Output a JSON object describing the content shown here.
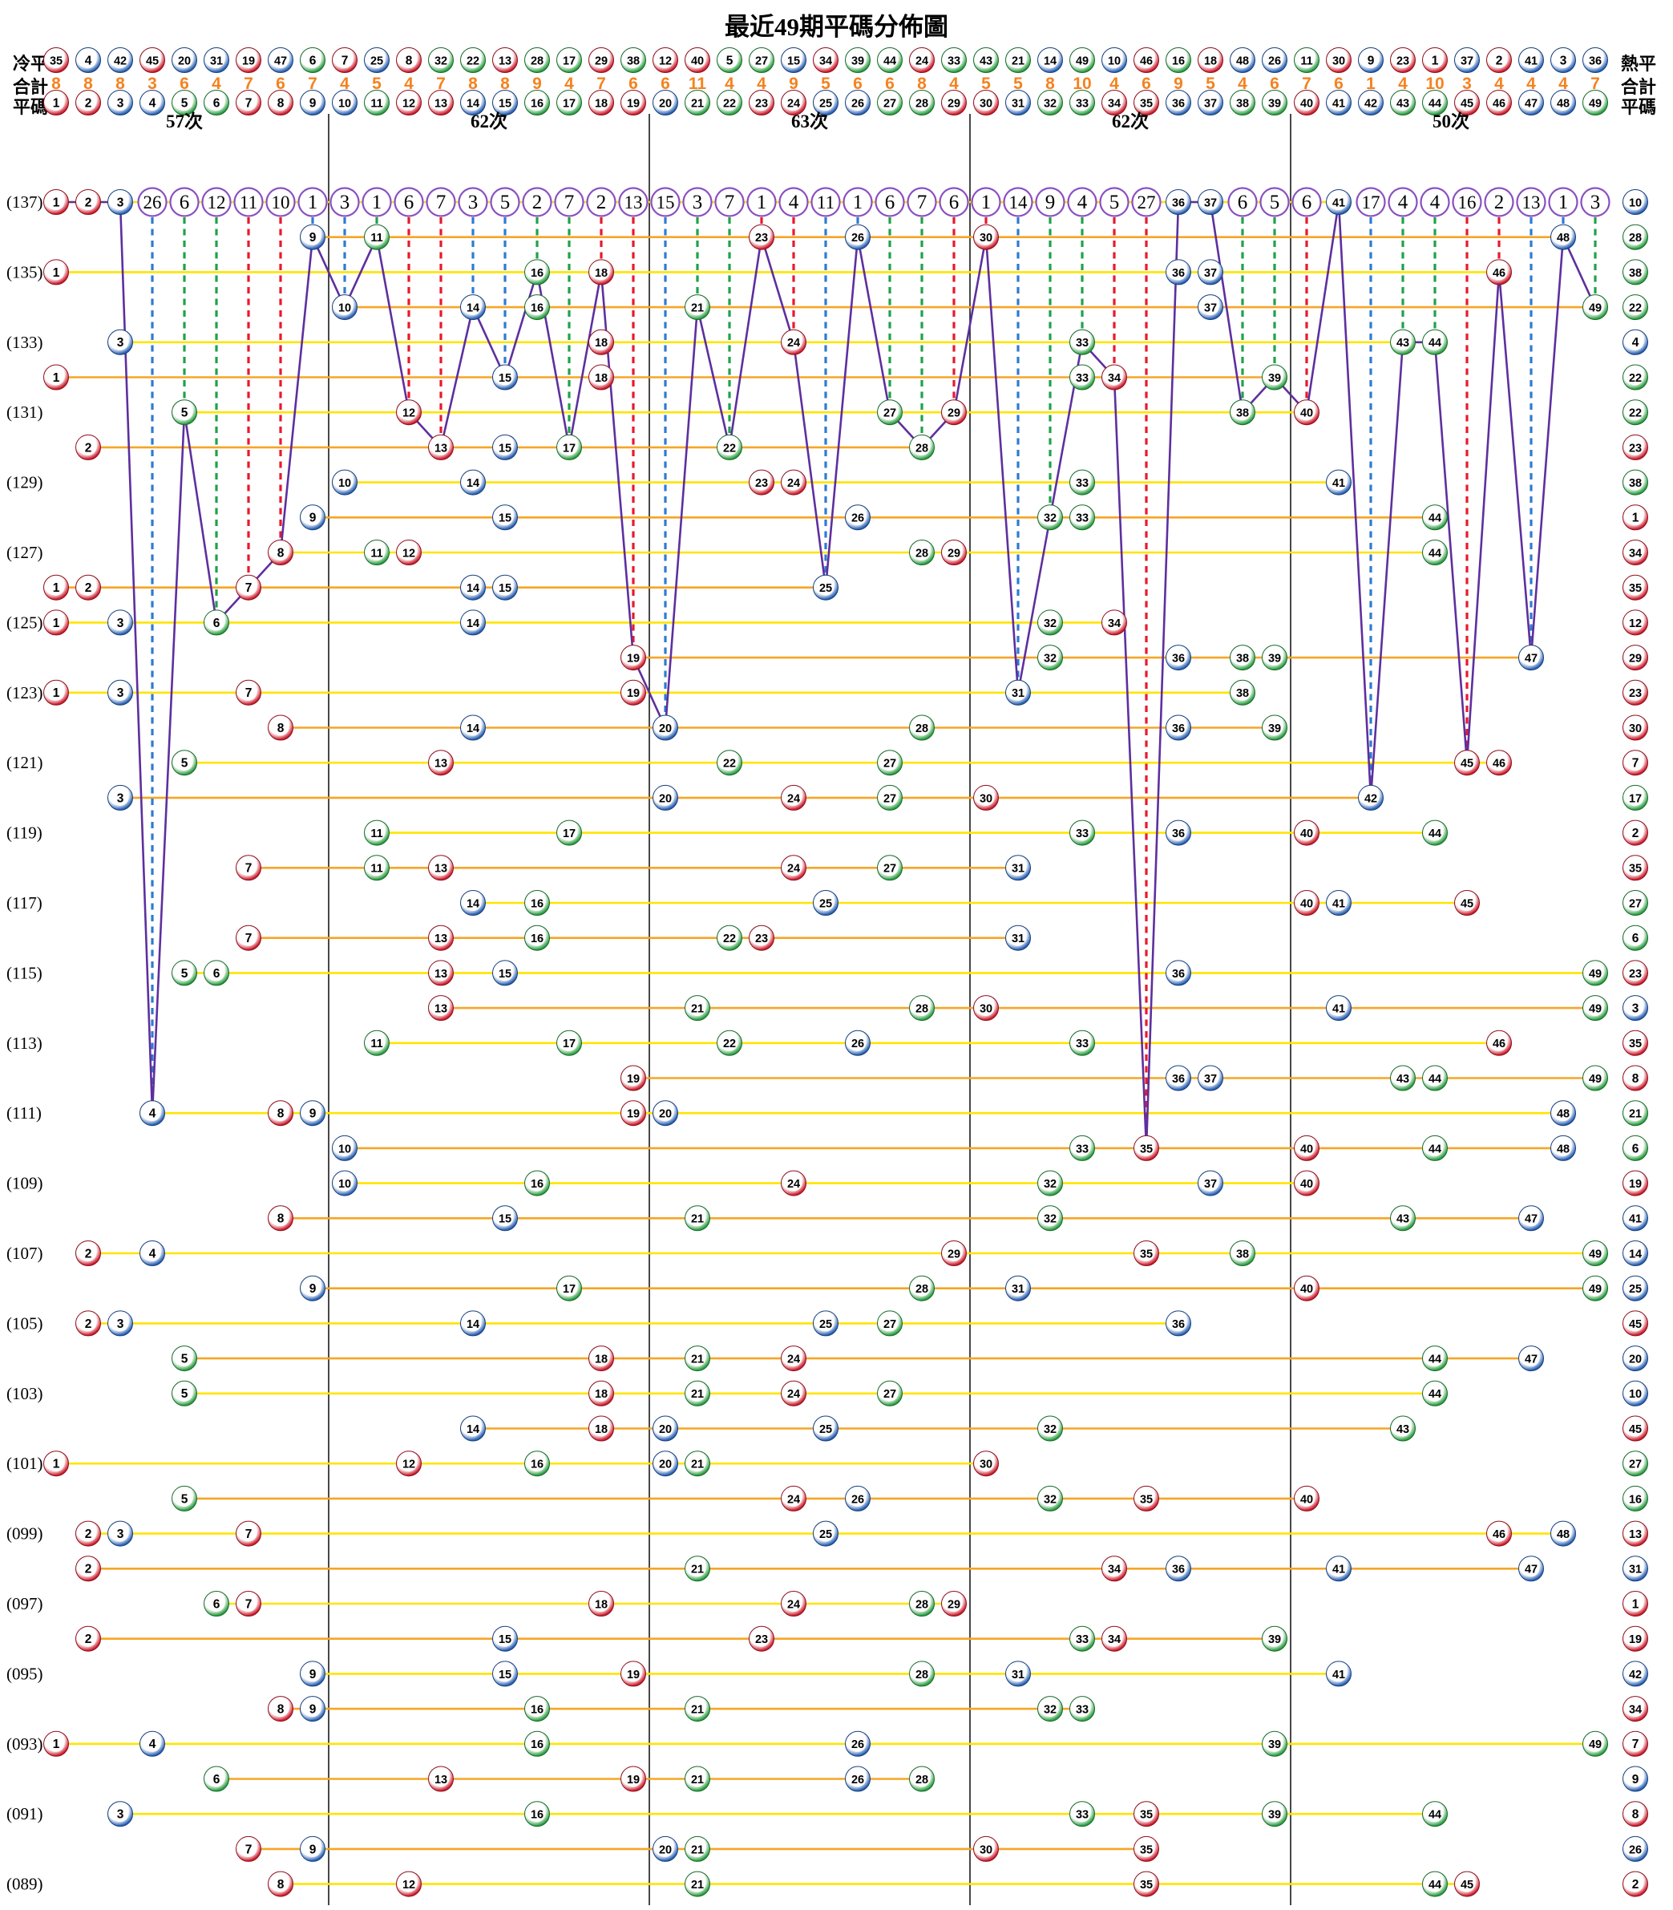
{
  "title": "最近49期平碼分佈圖",
  "header": {
    "left_labels": {
      "row1": "冷平",
      "row2": "合計",
      "row3": "平碼"
    },
    "right_labels": {
      "row1": "熱平",
      "row2": "合計",
      "row3": "平碼"
    },
    "cold_sequence": [
      35,
      4,
      42,
      45,
      20,
      31,
      19,
      47,
      6,
      7,
      25,
      8,
      32,
      22,
      13,
      28,
      17,
      29,
      38,
      12,
      40,
      5,
      27,
      15,
      34,
      39,
      44,
      24,
      33,
      43,
      21,
      14,
      49,
      10,
      46,
      16,
      18,
      48,
      26,
      11,
      30,
      9,
      23,
      1,
      37,
      2,
      41,
      3,
      36
    ],
    "totals": [
      8,
      8,
      8,
      3,
      6,
      4,
      7,
      6,
      7,
      4,
      5,
      4,
      7,
      8,
      8,
      9,
      4,
      7,
      6,
      6,
      11,
      4,
      4,
      9,
      5,
      6,
      6,
      8,
      4,
      5,
      5,
      8,
      10,
      4,
      6,
      9,
      5,
      4,
      6,
      7,
      6,
      1,
      4,
      10,
      3,
      4,
      4,
      4,
      7
    ],
    "numbers": [
      1,
      2,
      3,
      4,
      5,
      6,
      7,
      8,
      9,
      10,
      11,
      12,
      13,
      14,
      15,
      16,
      17,
      18,
      19,
      20,
      21,
      22,
      23,
      24,
      25,
      26,
      27,
      28,
      29,
      30,
      31,
      32,
      33,
      34,
      35,
      36,
      37,
      38,
      39,
      40,
      41,
      42,
      43,
      44,
      45,
      46,
      47,
      48,
      49
    ],
    "group_counts": [
      "57次",
      "62次",
      "63次",
      "62次",
      "50次"
    ]
  },
  "chart_data": {
    "type": "scatter",
    "title": "最近49期平碼分佈圖",
    "x_axis": "號碼 1-49 (平碼)",
    "y_axis": "期號 137 至 089",
    "latest_period": 137,
    "miss_counts": [
      0,
      0,
      0,
      26,
      6,
      12,
      11,
      10,
      1,
      3,
      1,
      6,
      7,
      3,
      5,
      2,
      7,
      2,
      13,
      15,
      3,
      7,
      1,
      4,
      11,
      1,
      6,
      7,
      6,
      1,
      14,
      9,
      4,
      5,
      27,
      0,
      0,
      6,
      5,
      6,
      0,
      17,
      4,
      4,
      16,
      2,
      13,
      1,
      3
    ],
    "periods": [
      {
        "period": 137,
        "balls": [
          1,
          2,
          3,
          36,
          37,
          41
        ],
        "hot": 10
      },
      {
        "period": 136,
        "balls": [
          9,
          11,
          23,
          26,
          30,
          48
        ],
        "hot": 28
      },
      {
        "period": 135,
        "balls": [
          1,
          16,
          18,
          36,
          37,
          46
        ],
        "hot": 38
      },
      {
        "period": 134,
        "balls": [
          10,
          14,
          16,
          21,
          37,
          49
        ],
        "hot": 22
      },
      {
        "period": 133,
        "balls": [
          3,
          18,
          24,
          33,
          43,
          44
        ],
        "hot": 4
      },
      {
        "period": 132,
        "balls": [
          1,
          15,
          18,
          33,
          34,
          39
        ],
        "hot": 22
      },
      {
        "period": 131,
        "balls": [
          5,
          12,
          27,
          29,
          38,
          40
        ],
        "hot": 22
      },
      {
        "period": 130,
        "balls": [
          2,
          13,
          15,
          17,
          22,
          28
        ],
        "hot": 23
      },
      {
        "period": 129,
        "balls": [
          10,
          14,
          23,
          24,
          33,
          41
        ],
        "hot": 38
      },
      {
        "period": 128,
        "balls": [
          9,
          15,
          26,
          32,
          33,
          44
        ],
        "hot": 1
      },
      {
        "period": 127,
        "balls": [
          8,
          11,
          12,
          28,
          29,
          44
        ],
        "hot": 34
      },
      {
        "period": 126,
        "balls": [
          1,
          2,
          7,
          14,
          15,
          25
        ],
        "hot": 35
      },
      {
        "period": 125,
        "balls": [
          1,
          3,
          6,
          14,
          32,
          34
        ],
        "hot": 12
      },
      {
        "period": 124,
        "balls": [
          19,
          32,
          36,
          38,
          39,
          47
        ],
        "hot": 29
      },
      {
        "period": 123,
        "balls": [
          1,
          3,
          7,
          19,
          31,
          38
        ],
        "hot": 23
      },
      {
        "period": 122,
        "balls": [
          8,
          14,
          20,
          28,
          36,
          39
        ],
        "hot": 30
      },
      {
        "period": 121,
        "balls": [
          5,
          13,
          22,
          27,
          45,
          46
        ],
        "hot": 7
      },
      {
        "period": 120,
        "balls": [
          3,
          20,
          24,
          27,
          30,
          42
        ],
        "hot": 17
      },
      {
        "period": 119,
        "balls": [
          11,
          17,
          33,
          36,
          40,
          44
        ],
        "hot": 2
      },
      {
        "period": 118,
        "balls": [
          7,
          11,
          13,
          24,
          27,
          31
        ],
        "hot": 35
      },
      {
        "period": 117,
        "balls": [
          14,
          16,
          25,
          40,
          41,
          45
        ],
        "hot": 27
      },
      {
        "period": 116,
        "balls": [
          7,
          13,
          16,
          22,
          23,
          31
        ],
        "hot": 6
      },
      {
        "period": 115,
        "balls": [
          5,
          6,
          13,
          15,
          36,
          49
        ],
        "hot": 23
      },
      {
        "period": 114,
        "balls": [
          13,
          21,
          28,
          30,
          41,
          49
        ],
        "hot": 3
      },
      {
        "period": 113,
        "balls": [
          11,
          17,
          22,
          26,
          33,
          46
        ],
        "hot": 35
      },
      {
        "period": 112,
        "balls": [
          19,
          36,
          37,
          43,
          44,
          49
        ],
        "hot": 8
      },
      {
        "period": 111,
        "balls": [
          4,
          8,
          9,
          19,
          20,
          48
        ],
        "hot": 21
      },
      {
        "period": 110,
        "balls": [
          10,
          33,
          35,
          40,
          44,
          48
        ],
        "hot": 6
      },
      {
        "period": 109,
        "balls": [
          10,
          16,
          24,
          32,
          37,
          40
        ],
        "hot": 19
      },
      {
        "period": 108,
        "balls": [
          8,
          15,
          21,
          32,
          43,
          47
        ],
        "hot": 41
      },
      {
        "period": 107,
        "balls": [
          2,
          4,
          29,
          35,
          38,
          49
        ],
        "hot": 14
      },
      {
        "period": 106,
        "balls": [
          9,
          17,
          28,
          31,
          40,
          49
        ],
        "hot": 25
      },
      {
        "period": 105,
        "balls": [
          2,
          3,
          14,
          25,
          27,
          36
        ],
        "hot": 45
      },
      {
        "period": 104,
        "balls": [
          5,
          18,
          21,
          24,
          44,
          47
        ],
        "hot": 20
      },
      {
        "period": 103,
        "balls": [
          5,
          18,
          21,
          24,
          27,
          44
        ],
        "hot": 10
      },
      {
        "period": 102,
        "balls": [
          14,
          18,
          20,
          25,
          32,
          43
        ],
        "hot": 45
      },
      {
        "period": 101,
        "balls": [
          1,
          12,
          16,
          20,
          21,
          30
        ],
        "hot": 27
      },
      {
        "period": 100,
        "balls": [
          5,
          24,
          26,
          32,
          35,
          40
        ],
        "hot": 16
      },
      {
        "period": 99,
        "balls": [
          2,
          3,
          7,
          25,
          46,
          48
        ],
        "hot": 13
      },
      {
        "period": 98,
        "balls": [
          2,
          21,
          34,
          36,
          41,
          47
        ],
        "hot": 31
      },
      {
        "period": 97,
        "balls": [
          6,
          7,
          18,
          24,
          28,
          29
        ],
        "hot": 1
      },
      {
        "period": 96,
        "balls": [
          2,
          15,
          23,
          33,
          34,
          39
        ],
        "hot": 19
      },
      {
        "period": 95,
        "balls": [
          9,
          15,
          19,
          28,
          31,
          41
        ],
        "hot": 42
      },
      {
        "period": 94,
        "balls": [
          8,
          9,
          16,
          21,
          32,
          33
        ],
        "hot": 34
      },
      {
        "period": 93,
        "balls": [
          1,
          4,
          16,
          26,
          39,
          49
        ],
        "hot": 7
      },
      {
        "period": 92,
        "balls": [
          6,
          13,
          19,
          21,
          26,
          28
        ],
        "hot": 9
      },
      {
        "period": 91,
        "balls": [
          3,
          16,
          33,
          35,
          39,
          44
        ],
        "hot": 8
      },
      {
        "period": 90,
        "balls": [
          7,
          9,
          20,
          21,
          30,
          35
        ],
        "hot": 26
      },
      {
        "period": 89,
        "balls": [
          8,
          12,
          21,
          35,
          44,
          45
        ],
        "hot": 2
      }
    ],
    "colors": {
      "red": "#cf2030",
      "red_dark": "#8e0f1c",
      "blue": "#2d64b4",
      "blue_dark": "#17407e",
      "green": "#2fa044",
      "green_dark": "#176b2a",
      "red_numbers": [
        1,
        2,
        7,
        8,
        12,
        13,
        18,
        19,
        23,
        24,
        29,
        30,
        34,
        35,
        40,
        45,
        46
      ],
      "blue_numbers": [
        3,
        4,
        9,
        10,
        14,
        15,
        20,
        25,
        26,
        31,
        36,
        37,
        41,
        42,
        47,
        48
      ],
      "green_numbers": [
        5,
        6,
        11,
        16,
        17,
        21,
        22,
        27,
        28,
        32,
        33,
        38,
        39,
        43,
        44,
        49
      ],
      "totals_text": "#f5821f",
      "row_line_odd": "#ffe400",
      "row_line_even": "#f6a525",
      "trend_line": "#5e2f9e",
      "miss_circle_stroke": "#8a4fc0",
      "dash_red": "#e8192c",
      "dash_blue": "#2e7bd0",
      "dash_green": "#1fa24a",
      "separator": "#1a1a1a"
    }
  }
}
